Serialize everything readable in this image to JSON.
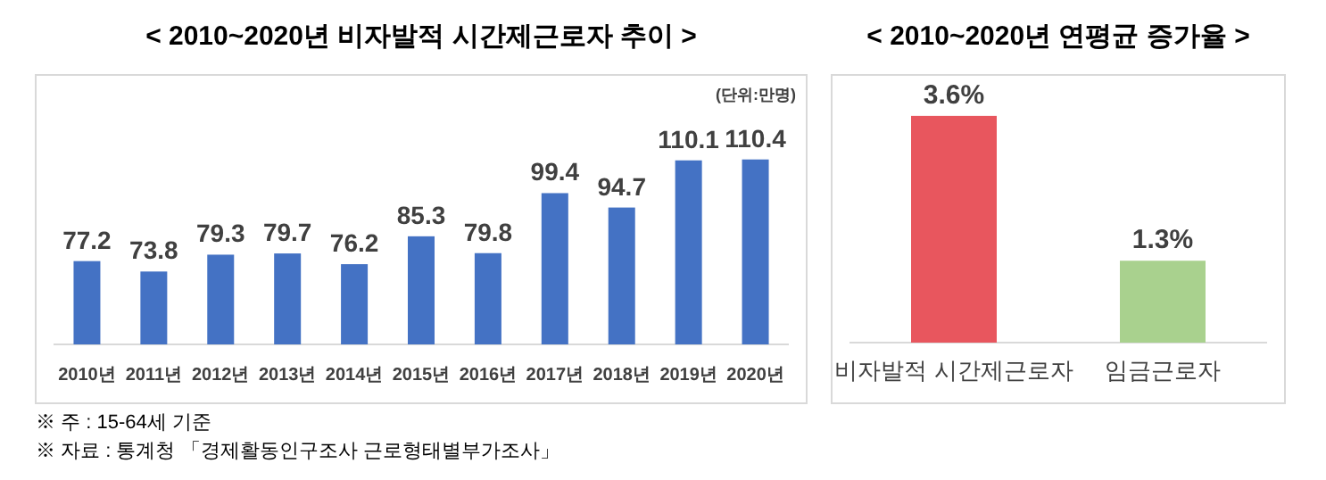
{
  "chart_data": [
    {
      "type": "bar",
      "title": "< 2010~2020년 비자발적 시간제근로자 추이 >",
      "categories": [
        "2010년",
        "2011년",
        "2012년",
        "2013년",
        "2014년",
        "2015년",
        "2016년",
        "2017년",
        "2018년",
        "2019년",
        "2020년"
      ],
      "values": [
        77.2,
        73.8,
        79.3,
        79.7,
        76.2,
        85.3,
        79.8,
        99.4,
        94.7,
        110.1,
        110.4
      ],
      "color": "#4472c4",
      "ylim": [
        50,
        138
      ],
      "data_labels": true,
      "tick_labels": "x",
      "annotations": [
        "(단위:만명)",
        "※ 주 : 15-64세 기준",
        "※ 자료 : 통계청 「경제활동인구조사 근로형태별부가조사」"
      ]
    },
    {
      "type": "bar",
      "title": "< 2010~2020년 연평균 증가율 >",
      "categories": [
        "비자발적 시간제근로자",
        "임금근로자"
      ],
      "values": [
        3.6,
        1.3
      ],
      "colors": [
        "#e8565e",
        "#a9d18e"
      ],
      "value_labels": [
        "3.6%",
        "1.3%"
      ],
      "ylim": [
        0,
        4.25
      ],
      "tick_labels": "x"
    }
  ]
}
